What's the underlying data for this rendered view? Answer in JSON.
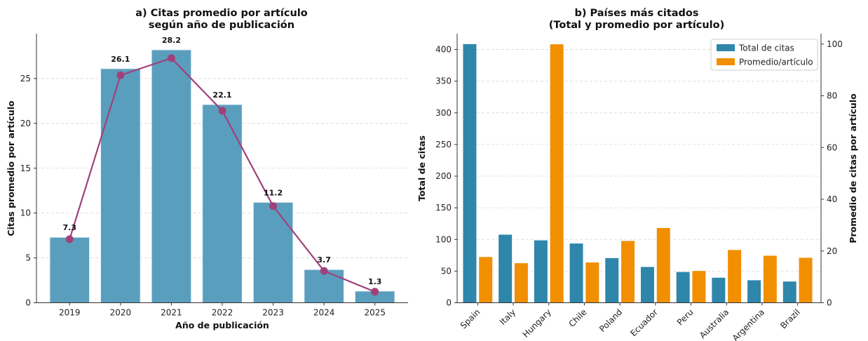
{
  "chart_data": [
    {
      "type": "bar",
      "title": [
        "a) Citas promedio por artículo",
        "según año de publicación"
      ],
      "xlabel": "Año de publicación",
      "ylabel": "Citas promedio por artículo",
      "categories": [
        "2019",
        "2020",
        "2021",
        "2022",
        "2023",
        "2024",
        "2025"
      ],
      "values": [
        7.3,
        26.1,
        28.2,
        22.1,
        11.2,
        3.7,
        1.3
      ],
      "data_labels": [
        "7.3",
        "26.1",
        "28.2",
        "22.1",
        "11.2",
        "3.7",
        "1.3"
      ],
      "overlay_line": {
        "type": "line",
        "values": [
          26,
          93,
          100,
          78.5,
          39.5,
          13,
          4.5
        ],
        "note": "purple trend line with markers (secondary scale, no axis shown)"
      },
      "ylim": [
        0,
        30
      ],
      "yticks": [
        0,
        5,
        10,
        15,
        20,
        25
      ],
      "grid": true,
      "colors": {
        "bar": "#5a9ebe",
        "bar_edge": "#e8f0f5",
        "line": "#a0417a"
      }
    },
    {
      "type": "bar",
      "title": [
        "b) Países más citados",
        "(Total y promedio por artículo)"
      ],
      "xlabel": "",
      "ylabel": "Total de citas",
      "ylabel_right": "Promedio de citas por artículo",
      "categories": [
        "Spain",
        "Italy",
        "Hungary",
        "Chile",
        "Poland",
        "Ecuador",
        "Peru",
        "Australia",
        "Argentina",
        "Brazil"
      ],
      "series": [
        {
          "name": "Total de citas",
          "axis": "left",
          "values": [
            409,
            108,
            99,
            94,
            71,
            57,
            49,
            40,
            36,
            34
          ]
        },
        {
          "name": "Promedio/artículo",
          "axis": "right",
          "values": [
            17.8,
            15.4,
            100,
            15.7,
            24,
            29,
            12.4,
            20.5,
            18.3,
            17.5
          ]
        }
      ],
      "ylim": [
        0,
        425
      ],
      "yticks": [
        0,
        50,
        100,
        150,
        200,
        250,
        300,
        350,
        400
      ],
      "ylim_right": [
        0,
        104
      ],
      "yticks_right": [
        0,
        20,
        40,
        60,
        80,
        100
      ],
      "legend_position": "top-right",
      "grid": true,
      "colors": {
        "total": "#2e86ab",
        "promedio": "#f18f01",
        "ylabel_left": "#2e86ab",
        "ylabel_right": "#f18f01"
      }
    }
  ]
}
